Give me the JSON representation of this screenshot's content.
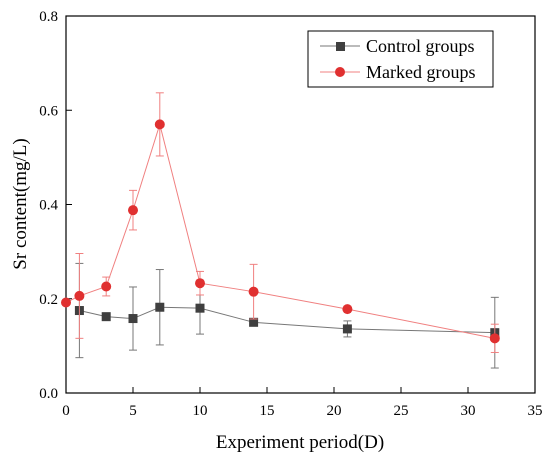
{
  "chart_data": {
    "type": "line",
    "xlabel": "Experiment period(D)",
    "ylabel": "Sr content(mg/L)",
    "xlim": [
      0,
      35
    ],
    "ylim": [
      0,
      0.8
    ],
    "x_ticks": [
      0,
      5,
      10,
      15,
      20,
      25,
      30,
      35
    ],
    "y_ticks": [
      0.0,
      0.2,
      0.4,
      0.6,
      0.8
    ],
    "x_tick_labels": [
      "0",
      "5",
      "10",
      "15",
      "20",
      "25",
      "30",
      "35"
    ],
    "y_tick_labels": [
      "0.0",
      "0.2",
      "0.4",
      "0.6",
      "0.8"
    ],
    "grid": false,
    "legend_position": "top-right",
    "series": [
      {
        "name": "Control groups",
        "color": "#777777",
        "marker_color": "#3f3f3f",
        "marker": "square",
        "x": [
          1,
          3,
          5,
          7,
          10,
          14,
          21,
          32
        ],
        "y": [
          0.175,
          0.162,
          0.158,
          0.182,
          0.18,
          0.15,
          0.136,
          0.128
        ],
        "error": [
          0.1,
          0.0,
          0.067,
          0.08,
          0.055,
          0.0,
          0.017,
          0.075
        ]
      },
      {
        "name": "Marked groups",
        "color": "#f08080",
        "marker_color": "#e03030",
        "marker": "circle",
        "x": [
          0,
          1,
          3,
          5,
          7,
          10,
          14,
          21,
          32
        ],
        "y": [
          0.192,
          0.206,
          0.226,
          0.388,
          0.57,
          0.233,
          0.215,
          0.178,
          0.116
        ],
        "error": [
          0.0,
          0.09,
          0.02,
          0.042,
          0.067,
          0.025,
          0.058,
          0.0,
          0.03
        ]
      }
    ]
  }
}
